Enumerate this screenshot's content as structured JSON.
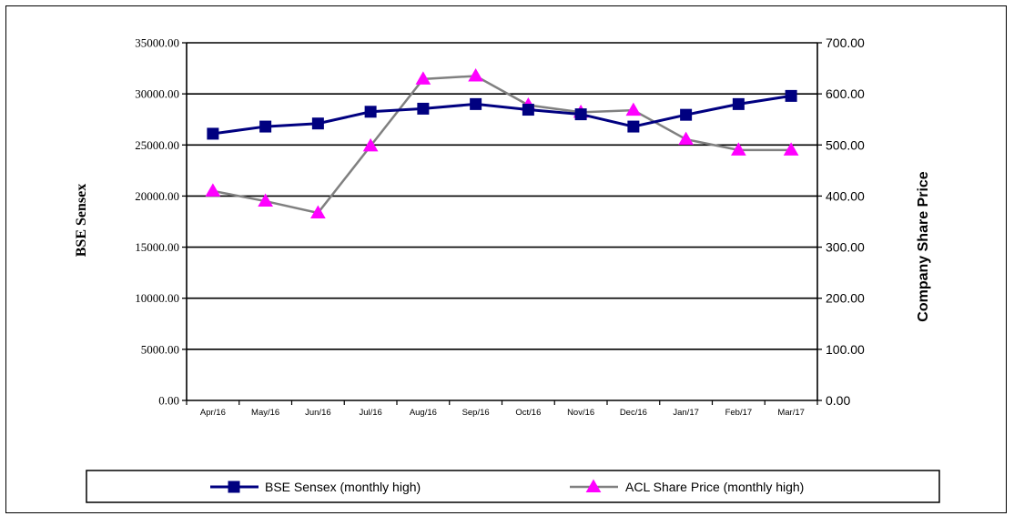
{
  "chart_data": {
    "type": "line",
    "title": "",
    "xlabel": "",
    "ylabel": "BSE Sensex",
    "y2label": "Company Share Price",
    "categories": [
      "Apr/16",
      "May/16",
      "Jun/16",
      "Jul/16",
      "Aug/16",
      "Sep/16",
      "Oct/16",
      "Nov/16",
      "Dec/16",
      "Jan/17",
      "Feb/17",
      "Mar/17"
    ],
    "ylim": [
      0,
      35000
    ],
    "y2lim": [
      0,
      700
    ],
    "y_ticks": [
      "0.00",
      "5000.00",
      "10000.00",
      "15000.00",
      "20000.00",
      "25000.00",
      "30000.00",
      "35000.00"
    ],
    "y2_ticks": [
      "0.00",
      "100.00",
      "200.00",
      "300.00",
      "400.00",
      "500.00",
      "600.00",
      "700.00"
    ],
    "grid": "horizontal",
    "legend_position": "bottom",
    "series": [
      {
        "name": "BSE Sensex (monthly high)",
        "axis": "left",
        "marker": "square",
        "color": "#000080",
        "values": [
          26100,
          26800,
          27100,
          28250,
          28550,
          29000,
          28450,
          28000,
          26800,
          27950,
          29000,
          29800
        ]
      },
      {
        "name": "ACL Share Price (monthly high)",
        "axis": "right",
        "marker": "triangle",
        "color": "#808080",
        "marker_color": "#ff00ff",
        "values": [
          410,
          390,
          367,
          498,
          629,
          635,
          578,
          564,
          568,
          511,
          490,
          490
        ]
      }
    ]
  }
}
